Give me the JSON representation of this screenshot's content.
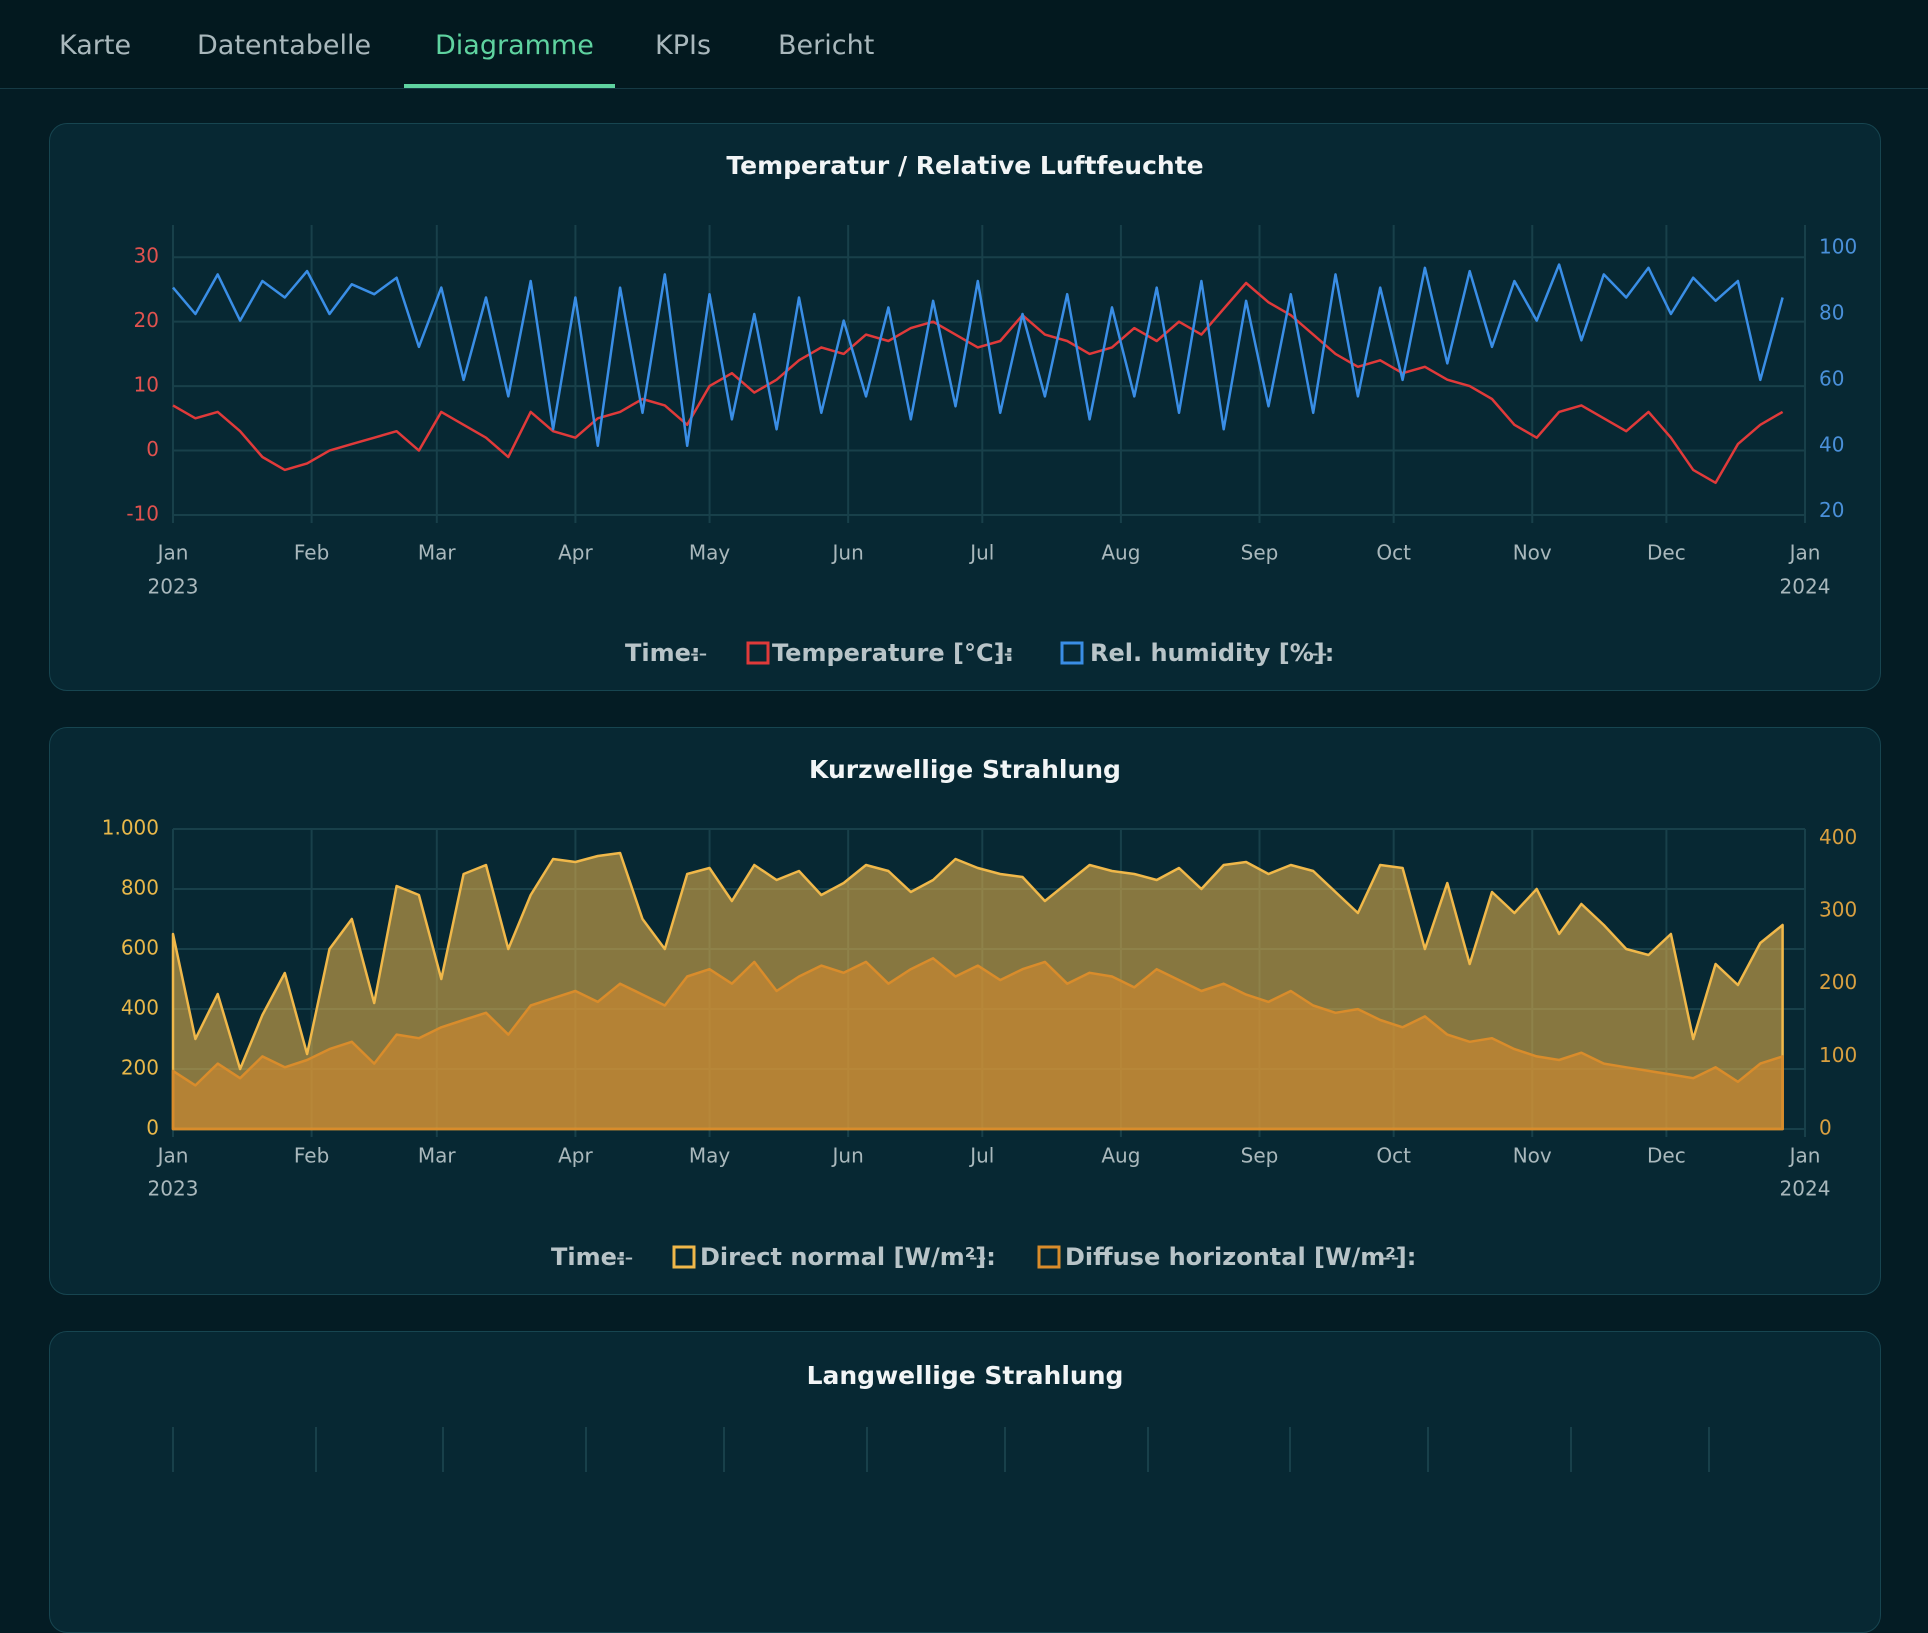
{
  "tabs": [
    "Karte",
    "Datentabelle",
    "Diagramme",
    "KPIs",
    "Bericht"
  ],
  "active_tab": 2,
  "chart_data": [
    {
      "type": "line",
      "title": "Temperatur / Relative Luftfeuchte",
      "xlim": [
        0,
        365
      ],
      "xticks": [
        {
          "value": 0,
          "label": "Jan"
        },
        {
          "value": 31,
          "label": "Feb"
        },
        {
          "value": 59,
          "label": "Mar"
        },
        {
          "value": 90,
          "label": "Apr"
        },
        {
          "value": 120,
          "label": "May"
        },
        {
          "value": 151,
          "label": "Jun"
        },
        {
          "value": 181,
          "label": "Jul"
        },
        {
          "value": 212,
          "label": "Aug"
        },
        {
          "value": 243,
          "label": "Sep"
        },
        {
          "value": 273,
          "label": "Oct"
        },
        {
          "value": 304,
          "label": "Nov"
        },
        {
          "value": 334,
          "label": "Dec"
        },
        {
          "value": 365,
          "label": "Jan"
        }
      ],
      "year_labels": [
        {
          "value": 0,
          "label": "2023"
        },
        {
          "value": 365,
          "label": "2024"
        }
      ],
      "ylim": [
        -10,
        35
      ],
      "yticks": [
        -10,
        0,
        10,
        20,
        30
      ],
      "ytick_color": "#e0524f",
      "y2lim": [
        19,
        107
      ],
      "y2ticks": [
        20,
        40,
        60,
        80,
        100
      ],
      "y2tick_color": "#4a90d9",
      "grid": true,
      "readout_label": "Time:",
      "readout_value": "--",
      "x": [
        0,
        5,
        10,
        15,
        20,
        25,
        30,
        35,
        40,
        45,
        50,
        55,
        60,
        65,
        70,
        75,
        80,
        85,
        90,
        95,
        100,
        105,
        110,
        115,
        120,
        125,
        130,
        135,
        140,
        145,
        150,
        155,
        160,
        165,
        170,
        175,
        180,
        185,
        190,
        195,
        200,
        205,
        210,
        215,
        220,
        225,
        230,
        235,
        240,
        245,
        250,
        255,
        260,
        265,
        270,
        275,
        280,
        285,
        290,
        295,
        300,
        305,
        310,
        315,
        320,
        325,
        330,
        335,
        340,
        345,
        350,
        355,
        360
      ],
      "series": [
        {
          "name": "Temperature [°C]:",
          "color": "#e03a3a",
          "axis": "y",
          "readout": "--",
          "values": [
            7,
            5,
            6,
            3,
            -1,
            -3,
            -2,
            0,
            1,
            2,
            3,
            0,
            6,
            4,
            2,
            -1,
            6,
            3,
            2,
            5,
            6,
            8,
            7,
            4,
            10,
            12,
            9,
            11,
            14,
            16,
            15,
            18,
            17,
            19,
            20,
            18,
            16,
            17,
            21,
            18,
            17,
            15,
            16,
            19,
            17,
            20,
            18,
            22,
            26,
            23,
            21,
            18,
            15,
            13,
            14,
            12,
            13,
            11,
            10,
            8,
            4,
            2,
            6,
            7,
            5,
            3,
            6,
            2,
            -3,
            -5,
            1,
            4,
            6
          ]
        },
        {
          "name": "Rel. humidity [%]:",
          "color": "#3a8ee6",
          "axis": "y2",
          "readout": "--",
          "values": [
            88,
            80,
            92,
            78,
            90,
            85,
            93,
            80,
            89,
            86,
            91,
            70,
            88,
            60,
            85,
            55,
            90,
            45,
            85,
            40,
            88,
            50,
            92,
            40,
            86,
            48,
            80,
            45,
            85,
            50,
            78,
            55,
            82,
            48,
            84,
            52,
            90,
            50,
            80,
            55,
            86,
            48,
            82,
            55,
            88,
            50,
            90,
            45,
            84,
            52,
            86,
            50,
            92,
            55,
            88,
            60,
            94,
            65,
            93,
            70,
            90,
            78,
            95,
            72,
            92,
            85,
            94,
            80,
            91,
            84,
            90,
            60,
            85
          ]
        }
      ]
    },
    {
      "type": "area",
      "title": "Kurzwellige Strahlung",
      "xlim": [
        0,
        365
      ],
      "xticks": [
        {
          "value": 0,
          "label": "Jan"
        },
        {
          "value": 31,
          "label": "Feb"
        },
        {
          "value": 59,
          "label": "Mar"
        },
        {
          "value": 90,
          "label": "Apr"
        },
        {
          "value": 120,
          "label": "May"
        },
        {
          "value": 151,
          "label": "Jun"
        },
        {
          "value": 181,
          "label": "Jul"
        },
        {
          "value": 212,
          "label": "Aug"
        },
        {
          "value": 243,
          "label": "Sep"
        },
        {
          "value": 273,
          "label": "Oct"
        },
        {
          "value": 304,
          "label": "Nov"
        },
        {
          "value": 334,
          "label": "Dec"
        },
        {
          "value": 365,
          "label": "Jan"
        }
      ],
      "year_labels": [
        {
          "value": 0,
          "label": "2023"
        },
        {
          "value": 365,
          "label": "2024"
        }
      ],
      "ylim": [
        0,
        1000
      ],
      "yticks": [
        0,
        200,
        400,
        600,
        800,
        {
          "value": 1000,
          "label": "1.000"
        }
      ],
      "ytick_color": "#e8b84a",
      "y2lim": [
        0,
        413
      ],
      "y2ticks": [
        0,
        100,
        200,
        300,
        400
      ],
      "y2tick_color": "#d9a040",
      "grid": true,
      "readout_label": "Time:",
      "readout_value": "--",
      "x": [
        0,
        5,
        10,
        15,
        20,
        25,
        30,
        35,
        40,
        45,
        50,
        55,
        60,
        65,
        70,
        75,
        80,
        85,
        90,
        95,
        100,
        105,
        110,
        115,
        120,
        125,
        130,
        135,
        140,
        145,
        150,
        155,
        160,
        165,
        170,
        175,
        180,
        185,
        190,
        195,
        200,
        205,
        210,
        215,
        220,
        225,
        230,
        235,
        240,
        245,
        250,
        255,
        260,
        265,
        270,
        275,
        280,
        285,
        290,
        295,
        300,
        305,
        310,
        315,
        320,
        325,
        330,
        335,
        340,
        345,
        350,
        355,
        360
      ],
      "series": [
        {
          "name": "Direct normal [W/m²]:",
          "color": "#f0b84a",
          "axis": "y",
          "readout": "--",
          "values": [
            650,
            300,
            450,
            200,
            380,
            520,
            250,
            600,
            700,
            420,
            810,
            780,
            500,
            850,
            880,
            600,
            780,
            900,
            890,
            910,
            920,
            700,
            600,
            850,
            870,
            760,
            880,
            830,
            860,
            780,
            820,
            880,
            860,
            790,
            830,
            900,
            870,
            850,
            840,
            760,
            820,
            880,
            860,
            850,
            830,
            870,
            800,
            880,
            890,
            850,
            880,
            860,
            790,
            720,
            880,
            870,
            600,
            820,
            550,
            790,
            720,
            800,
            650,
            750,
            680,
            600,
            580,
            650,
            300,
            550,
            480,
            620,
            680
          ]
        },
        {
          "name": "Diffuse horizontal [W/m²]:",
          "color": "#d98c2b",
          "axis": "y2",
          "readout": "--",
          "values": [
            80,
            60,
            90,
            70,
            100,
            85,
            95,
            110,
            120,
            90,
            130,
            125,
            140,
            150,
            160,
            130,
            170,
            180,
            190,
            175,
            200,
            185,
            170,
            210,
            220,
            200,
            230,
            190,
            210,
            225,
            215,
            230,
            200,
            220,
            235,
            210,
            225,
            205,
            220,
            230,
            200,
            215,
            210,
            195,
            220,
            205,
            190,
            200,
            185,
            175,
            190,
            170,
            160,
            165,
            150,
            140,
            155,
            130,
            120,
            125,
            110,
            100,
            95,
            105,
            90,
            85,
            80,
            75,
            70,
            85,
            65,
            90,
            100
          ]
        }
      ]
    }
  ],
  "extra_panel": {
    "title": "Langwellige Strahlung"
  }
}
